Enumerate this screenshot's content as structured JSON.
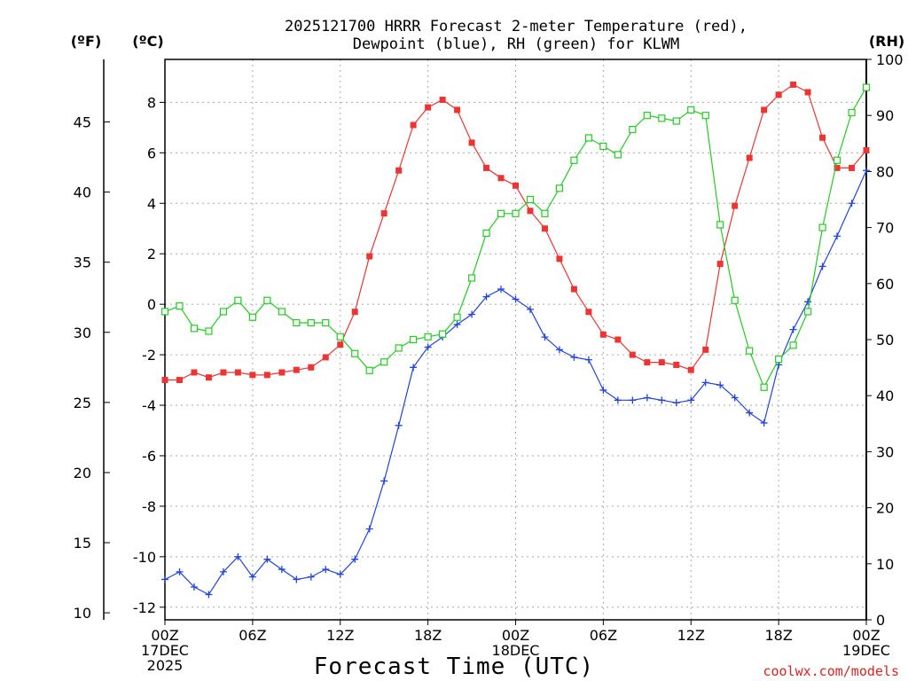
{
  "chart_data": {
    "type": "line",
    "title_line1": "2025121700 HRRR Forecast 2-meter Temperature (red),",
    "title_line2": "Dewpoint (blue), RH (green) for KLWM",
    "xlabel": "Forecast Time (UTC)",
    "left_outer_unit": "(ºF)",
    "left_inner_unit": "(ºC)",
    "right_unit": "(RH)",
    "credit": "coolwx.com/models",
    "grid": true,
    "x": {
      "range_hours": [
        0,
        48
      ],
      "ticks": [
        {
          "hour": 0,
          "lines": [
            "00Z",
            "17DEC",
            "2025"
          ]
        },
        {
          "hour": 6,
          "lines": [
            "06Z"
          ]
        },
        {
          "hour": 12,
          "lines": [
            "12Z"
          ]
        },
        {
          "hour": 18,
          "lines": [
            "18Z"
          ]
        },
        {
          "hour": 24,
          "lines": [
            "00Z",
            "18DEC"
          ]
        },
        {
          "hour": 30,
          "lines": [
            "06Z"
          ]
        },
        {
          "hour": 36,
          "lines": [
            "12Z"
          ]
        },
        {
          "hour": 42,
          "lines": [
            "18Z"
          ]
        },
        {
          "hour": 48,
          "lines": [
            "00Z",
            "19DEC"
          ]
        }
      ]
    },
    "y_celsius": {
      "range": [
        -12.5,
        9.7
      ],
      "ticks": [
        -12,
        -10,
        -8,
        -6,
        -4,
        -2,
        0,
        2,
        4,
        6,
        8
      ]
    },
    "y_fahrenheit": {
      "ticks": [
        10,
        15,
        20,
        25,
        30,
        35,
        40,
        45
      ]
    },
    "y_rh": {
      "range": [
        0,
        100
      ],
      "ticks": [
        0,
        10,
        20,
        30,
        40,
        50,
        60,
        70,
        80,
        90,
        100
      ]
    },
    "colors": {
      "temperature": "#ee3333",
      "dewpoint": "#2244dd",
      "rh": "#22cc22",
      "credit": "#dd2222"
    },
    "series": [
      {
        "key": "temperature",
        "axis": "celsius",
        "marker": "filled-square",
        "values": [
          -3.0,
          -3.0,
          -2.7,
          -2.9,
          -2.7,
          -2.7,
          -2.8,
          -2.8,
          -2.7,
          -2.6,
          -2.5,
          -2.1,
          -1.6,
          -0.3,
          1.9,
          3.6,
          5.3,
          7.1,
          7.8,
          8.1,
          7.7,
          6.4,
          5.4,
          5.0,
          4.7,
          3.7,
          3.0,
          1.8,
          0.6,
          -0.3,
          -1.2,
          -1.4,
          -2.0,
          -2.3,
          -2.3,
          -2.4,
          -2.6,
          -1.8,
          1.6,
          3.9,
          5.8,
          7.7,
          8.3,
          8.7,
          8.4,
          6.6,
          5.4,
          5.4,
          6.1
        ]
      },
      {
        "key": "dewpoint",
        "axis": "celsius",
        "marker": "plus",
        "values": [
          -10.9,
          -10.6,
          -11.2,
          -11.5,
          -10.6,
          -10.0,
          -10.8,
          -10.1,
          -10.5,
          -10.9,
          -10.8,
          -10.5,
          -10.7,
          -10.1,
          -8.9,
          -7.0,
          -4.8,
          -2.5,
          -1.7,
          -1.3,
          -0.8,
          -0.4,
          0.3,
          0.6,
          0.2,
          -0.2,
          -1.3,
          -1.8,
          -2.1,
          -2.2,
          -3.4,
          -3.8,
          -3.8,
          -3.7,
          -3.8,
          -3.9,
          -3.8,
          -3.1,
          -3.2,
          -3.7,
          -4.3,
          -4.7,
          -2.4,
          -1.0,
          0.1,
          1.5,
          2.7,
          4.0,
          5.3
        ]
      },
      {
        "key": "rh",
        "axis": "rh",
        "marker": "open-square",
        "values": [
          55,
          56,
          52,
          51.5,
          55,
          57,
          54,
          57,
          55,
          53,
          53,
          53,
          50.5,
          47.5,
          44.5,
          46,
          48.5,
          50,
          50.5,
          51,
          54,
          61,
          69,
          72.5,
          72.5,
          75,
          72.5,
          77,
          82,
          86,
          84.5,
          83,
          87.5,
          90,
          89.5,
          89,
          91,
          90,
          70.5,
          57,
          48,
          41.5,
          46.5,
          49,
          55,
          70,
          82,
          90.5,
          95
        ]
      }
    ]
  }
}
